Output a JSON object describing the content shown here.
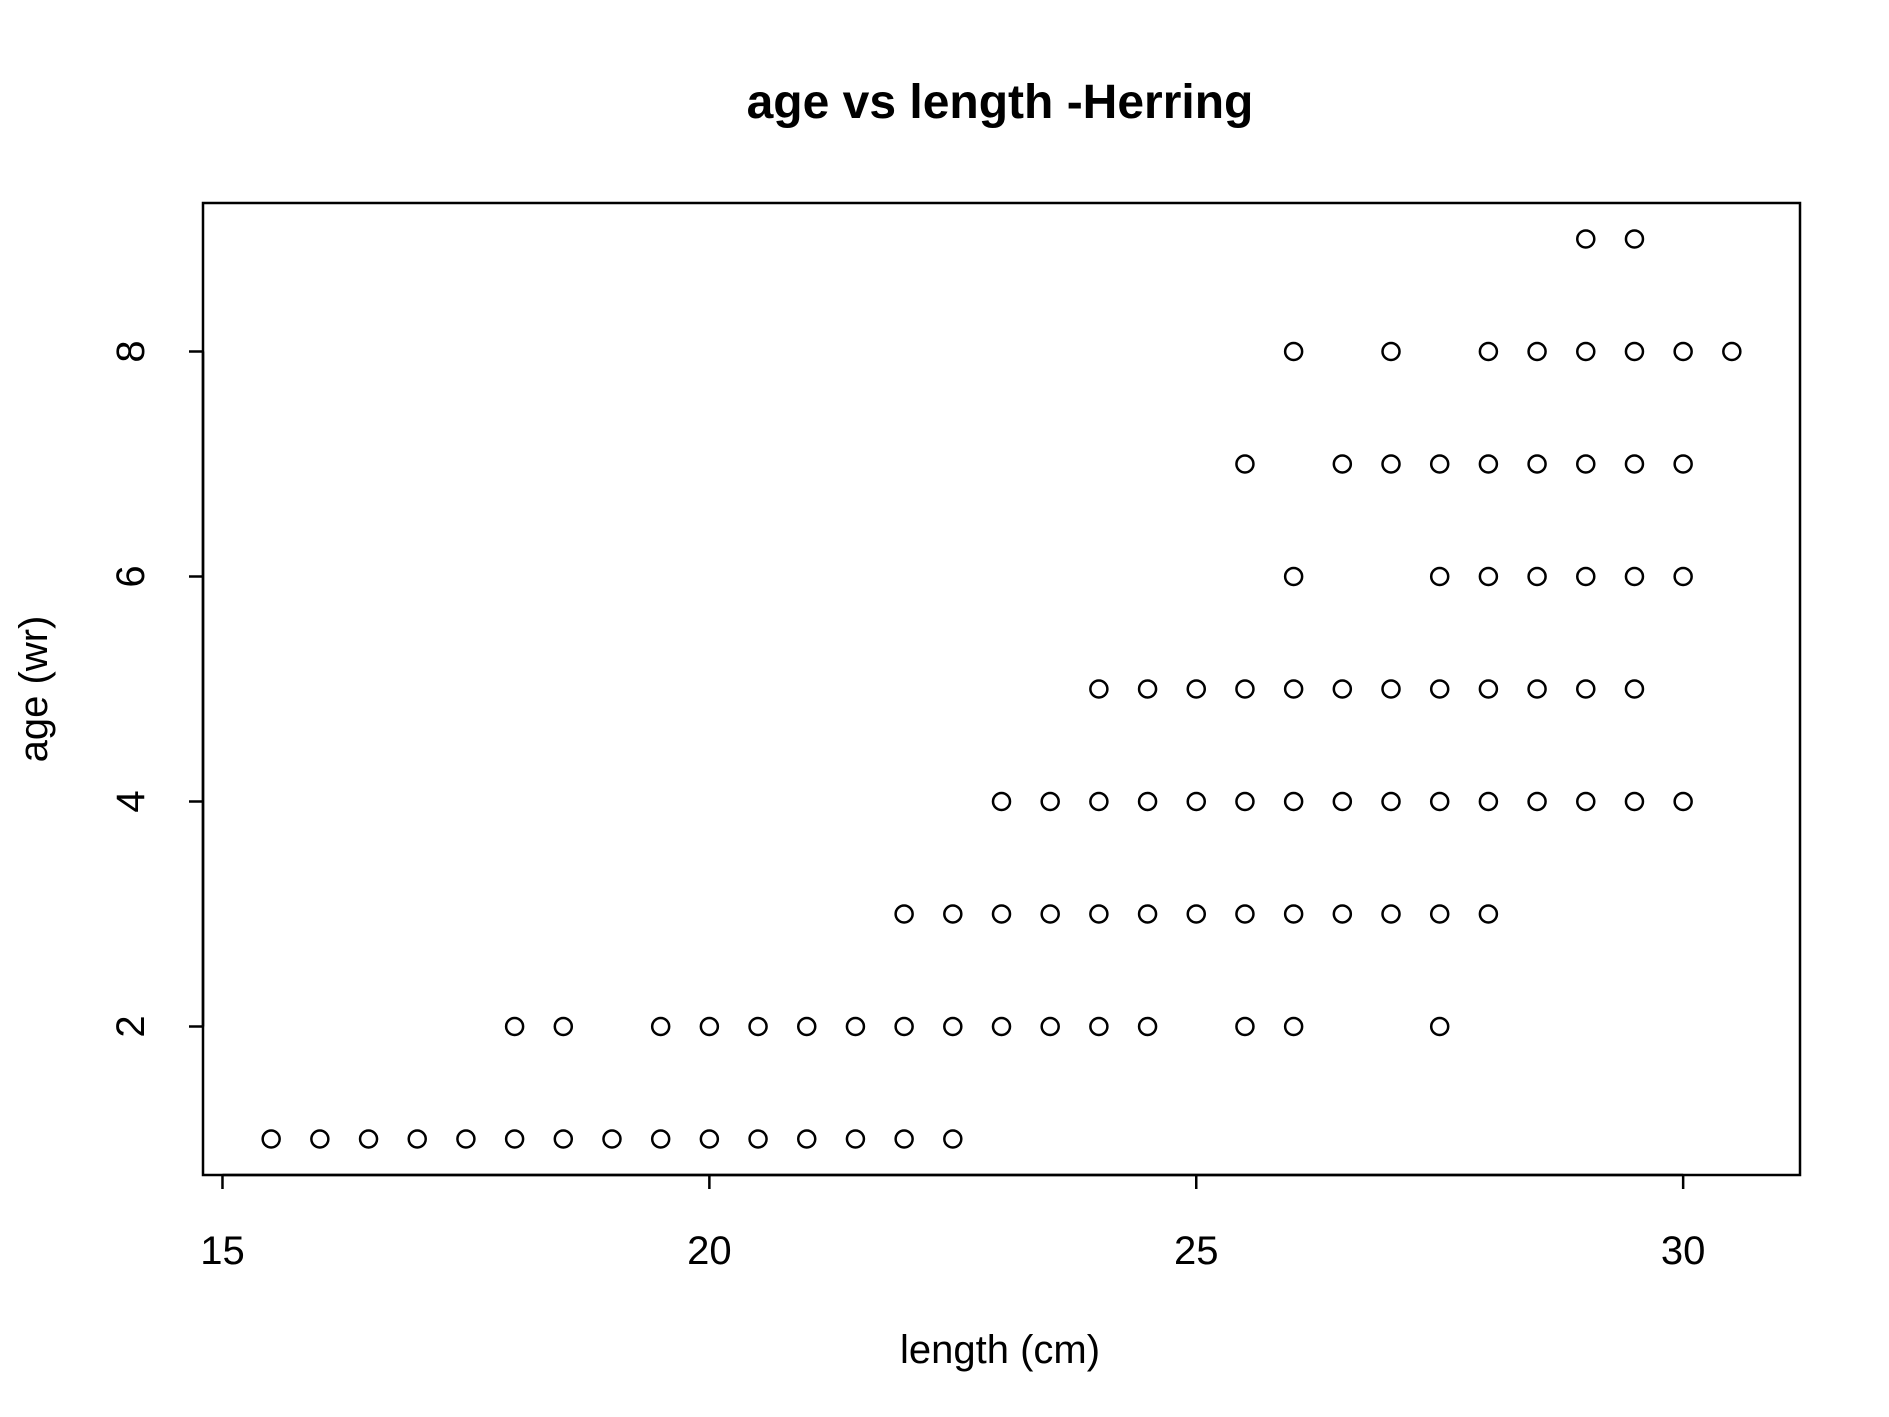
{
  "chart_data": {
    "type": "scatter",
    "title": "age vs length -Herring",
    "xlabel": "length (cm)",
    "ylabel": "age (wr)",
    "xlim": [
      14.8,
      31.2
    ],
    "ylim": [
      0.68,
      9.32
    ],
    "xticks": [
      15,
      20,
      25,
      30
    ],
    "yticks": [
      2,
      4,
      6,
      8
    ],
    "grid": false,
    "legend": "none",
    "marker": "open-circle",
    "color": "#000000",
    "points": [
      [
        15.5,
        1
      ],
      [
        16,
        1
      ],
      [
        16.5,
        1
      ],
      [
        17,
        1
      ],
      [
        17.5,
        1
      ],
      [
        18,
        1
      ],
      [
        18.5,
        1
      ],
      [
        19,
        1
      ],
      [
        19.5,
        1
      ],
      [
        20,
        1
      ],
      [
        20.5,
        1
      ],
      [
        21,
        1
      ],
      [
        21.5,
        1
      ],
      [
        22,
        1
      ],
      [
        22.5,
        1
      ],
      [
        18,
        2
      ],
      [
        18.5,
        2
      ],
      [
        19.5,
        2
      ],
      [
        20,
        2
      ],
      [
        20.5,
        2
      ],
      [
        21,
        2
      ],
      [
        21.5,
        2
      ],
      [
        22,
        2
      ],
      [
        22.5,
        2
      ],
      [
        23,
        2
      ],
      [
        23.5,
        2
      ],
      [
        24,
        2
      ],
      [
        24.5,
        2
      ],
      [
        25.5,
        2
      ],
      [
        26,
        2
      ],
      [
        27.5,
        2
      ],
      [
        22,
        3
      ],
      [
        22.5,
        3
      ],
      [
        23,
        3
      ],
      [
        23.5,
        3
      ],
      [
        24,
        3
      ],
      [
        24.5,
        3
      ],
      [
        25,
        3
      ],
      [
        25.5,
        3
      ],
      [
        26,
        3
      ],
      [
        26.5,
        3
      ],
      [
        27,
        3
      ],
      [
        27.5,
        3
      ],
      [
        28,
        3
      ],
      [
        23,
        4
      ],
      [
        23.5,
        4
      ],
      [
        24,
        4
      ],
      [
        24.5,
        4
      ],
      [
        25,
        4
      ],
      [
        25.5,
        4
      ],
      [
        26,
        4
      ],
      [
        26.5,
        4
      ],
      [
        27,
        4
      ],
      [
        27.5,
        4
      ],
      [
        28,
        4
      ],
      [
        28.5,
        4
      ],
      [
        29,
        4
      ],
      [
        29.5,
        4
      ],
      [
        30,
        4
      ],
      [
        24,
        5
      ],
      [
        24.5,
        5
      ],
      [
        25,
        5
      ],
      [
        25.5,
        5
      ],
      [
        26,
        5
      ],
      [
        26.5,
        5
      ],
      [
        27,
        5
      ],
      [
        27.5,
        5
      ],
      [
        28,
        5
      ],
      [
        28.5,
        5
      ],
      [
        29,
        5
      ],
      [
        29.5,
        5
      ],
      [
        26,
        6
      ],
      [
        27.5,
        6
      ],
      [
        28,
        6
      ],
      [
        28.5,
        6
      ],
      [
        29,
        6
      ],
      [
        29.5,
        6
      ],
      [
        30,
        6
      ],
      [
        25.5,
        7
      ],
      [
        26.5,
        7
      ],
      [
        27,
        7
      ],
      [
        27.5,
        7
      ],
      [
        28,
        7
      ],
      [
        28.5,
        7
      ],
      [
        29,
        7
      ],
      [
        29.5,
        7
      ],
      [
        30,
        7
      ],
      [
        26,
        8
      ],
      [
        27,
        8
      ],
      [
        28,
        8
      ],
      [
        28.5,
        8
      ],
      [
        29,
        8
      ],
      [
        29.5,
        8
      ],
      [
        30,
        8
      ],
      [
        30.5,
        8
      ],
      [
        29,
        9
      ],
      [
        29.5,
        9
      ]
    ]
  }
}
